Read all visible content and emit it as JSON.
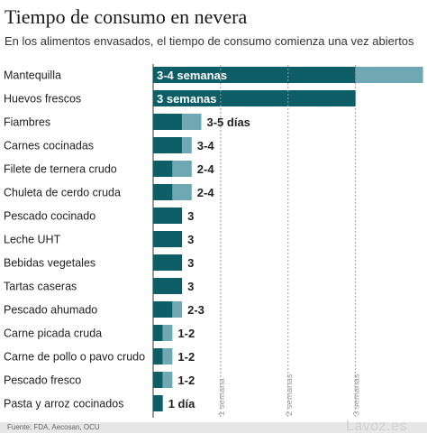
{
  "title": "Tiempo de consumo en nevera",
  "subtitle": "En los alimentos envasados, el tiempo de consumo comienza una vez abiertos",
  "source": "Fuente: FDA, Aecosan, OCU",
  "brand": "Lavoz.es",
  "colors": {
    "dark": "#0e5e68",
    "light": "#6fa8b2",
    "text": "#222222"
  },
  "chart_data": {
    "type": "bar",
    "orientation": "horizontal",
    "stacked": true,
    "unit": "days",
    "xlim": [
      0,
      28
    ],
    "x_ticks": [
      {
        "value": 7,
        "label": "1 semana"
      },
      {
        "value": 14,
        "label": "2 semanas"
      },
      {
        "value": 21,
        "label": "3 semanas"
      }
    ],
    "categories": [
      "Mantequilla",
      "Huevos frescos",
      "Fiambres",
      "Carnes cocinadas",
      "Filete de ternera crudo",
      "Chuleta de cerdo cruda",
      "Pescado cocinado",
      "Leche UHT",
      "Bebidas vegetales",
      "Tartas caseras",
      "Pescado ahumado",
      "Carne picada cruda",
      "Carne de pollo o pavo crudo",
      "Pescado fresco",
      "Pasta y arroz cocinados"
    ],
    "series": [
      {
        "values": [
          21,
          21,
          3,
          3,
          2,
          2,
          3,
          3,
          3,
          3,
          2,
          1,
          1,
          1,
          1
        ]
      },
      {
        "values": [
          7,
          0,
          2,
          1,
          2,
          2,
          0,
          0,
          0,
          0,
          1,
          1,
          1,
          1,
          0
        ]
      }
    ],
    "value_labels": [
      "3-4 semanas",
      "3 semanas",
      "3-5 días",
      "3-4",
      "2-4",
      "2-4",
      "3",
      "3",
      "3",
      "3",
      "2-3",
      "1-2",
      "1-2",
      "1-2",
      "1 día"
    ],
    "grid": true
  }
}
